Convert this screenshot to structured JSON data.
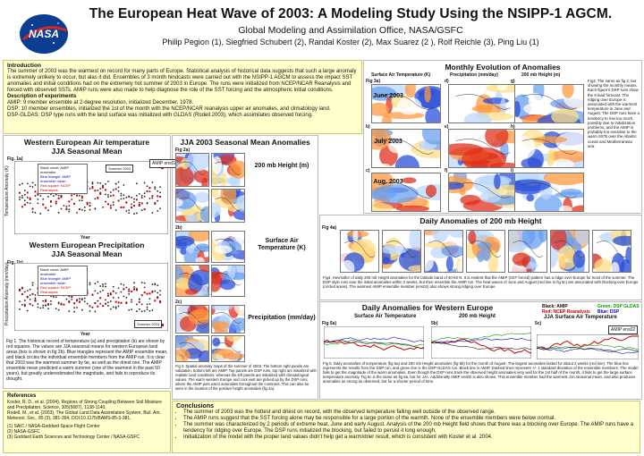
{
  "header": {
    "title": "The European Heat Wave of 2003: A Modeling Study Using the NSIPP-1 AGCM.",
    "subtitle": "Global Modeling and Assimilation Office, NASA/GSFC",
    "authors": "Philip Pegion (1), Siegfried Schubert (2), Randal Koster (2), Max Suarez (2 ), Rolf Reichle (3), Ping Liu (1)"
  },
  "intro": {
    "heading": "Introduction",
    "text": "The summer of 2003 was the warmest on record for many parts of Europe. Statistical analysis of historical data suggests that such a large anomaly is extremely unlikely to occur, but alas it did. Ensembles of 3 month hindcasts were carried out with the NSIPP-1 AGCM to assess the impact SST anomalies and initial conditions had on the extremely hot summer of 2003 in Europe. The runs were initialized from NCEP/NCAR Reanalysis and forced with observed SSTs. AMIP runs were also made to help diagnose the role of the SST forcing and the atmospheric initial conditions.",
    "exp_heading": "Description of experiments",
    "amip": "AMIP: 9 member ensemble at 2-degree resolution, initialized December, 1978.",
    "dsp": "DSP: 10 member ensembles, initialized the 1st of the month with the NCEP/NCAR reanalysis upper air anomalies, and climatology land.",
    "dspgldas": "DSP-GLDAS: DSP type runs with the land surface was initialized with GLDAS (Rodell 2003), which assimilates observed forcing."
  },
  "left": {
    "temp_title": "Western European Air temperature",
    "temp_sub": "JJA Seasonal Mean",
    "fig1a": "Fig. 1a)",
    "temp_ylabel": "Temperature Anomaly (K)",
    "legend1": "Black circle: AMIP ensemble",
    "legend2": "Blue triangle: AMIP ensemble mean",
    "legend3": "Red square: NCEP Reanalysis",
    "summer_tag": "Summer 2003",
    "year": "Year",
    "precip_title": "Western European Precipitation",
    "precip_sub": "JJA Seasonal Mean",
    "fig1b": "Fig. 1b)",
    "precip_ylabel": "Precipitation Anomaly (mm/day)",
    "summer_tag2": "Summer 2003",
    "year2": "Year",
    "caption": "Fig 1. The historical record of temperature (a) and precipitation (b) are shown by red squares. The values are JJA seasonal means for western European land areas (box is shown in fig 2b). Blue triangles represent the AMIP ensemble mean, and black circles the individual ensemble members from the AMIP run. It is clear that 2003 was the warmest summer by far, as well as the driest one. The AMIP ensemble mean predicted a warm summer (one of the warmest in the past 50 years), but greatly underestimated the magnitude, and fails to reproduce its drought."
  },
  "jja": {
    "title": "JJA 2003 Seasonal Mean Anomalies",
    "fig2a": "Fig 2a)",
    "amip_tag": "AMIP ens02",
    "row1": "200 mb Height (m)",
    "row2": "Surface Air Temperature (K)",
    "row3": "Precipitation (mm/day)",
    "map_a": "NCEP Reanalysis",
    "map_b": "AMIP",
    "map_c": "DSP June 1 init",
    "map_d": "DSP-GLDAS June 1 init",
    "fig2b": "2b)",
    "fig2c": "2c)",
    "caption": "Fig 2. Spatial anomaly maps of the summer of 2003. The bottom right panels are validation, bottom left are AMIP. Top panels are DSP runs, top right are initialized with realistic land conditions, whereas the left panels are initialized with climatological values. The warm western Europe and cool east are picked up by the DSP runs, where the AMIP puts warm anomalies throughout the continent. This can also be seen in the location of the positive height anomalies (fig 2a)."
  },
  "monthly": {
    "title": "Monthly Evolution of Anomalies",
    "col1": "Surface Air Temperature (K)",
    "col2": "Precipitation (mm/day)",
    "col3": "200 mb Height (m)",
    "fig3a": "Fig 3a)",
    "d": "d)",
    "g": "g)",
    "b": "b)",
    "e": "e)",
    "h": "h)",
    "c": "c)",
    "f": "f)",
    "i": "i)",
    "june": "June 2003",
    "july": "July 2003",
    "aug": "Aug. 2003",
    "caption": "Fig3. The same as fig 2, but showing the monthly means. Each figure's DSP runs show the 6 lead forecast. The ridging over Europe is associated with the warmest temperature in June and August. The DSP runs have a tendency to rise too much, possibly due to initialization problems, and the AMIP is probably too sensitive to the warm SSTs over the Atlantic ocean and Mediterranean sea."
  },
  "daily": {
    "title": "Daily Anomalies of 200 mb Height",
    "fig4a": "Fig 4a)",
    "b": "b)",
    "c": "c)",
    "d": "d)",
    "e": "e)",
    "f": "f)",
    "g": "g)",
    "caption": "Fig4. Hovmuller of daily 200 mb Height anomalies for the latitude band of 40-60 N. It is evident that the AMIP (SST forced) pattern has a ridge over Europe for most of the summer. The DSP style runs lose the initial anomalies within 2 weeks, but then resemble the AMIP run. The heat waves of June and August (red line in fig 5c) are associated with blocking over Europe (circled areas). The warmest AMIP ensemble member (ens02) also shows strong ridging over Europe."
  },
  "daily_eu": {
    "title": "Daily Anomalies for Western Europe",
    "col1": "Surface Air Temperature",
    "col2": "200 mb Height",
    "col3": "JJA Surface Air Temperature",
    "leg_black": "Black: AMIP",
    "leg_red": "Red: NCEP Reanalysis",
    "leg_green": "Green: DSP GLDAS",
    "leg_blue": "Blue: DSP",
    "fig5a": "Fig 5a)",
    "b": "5b)",
    "c": "5c)",
    "amip_tag": "AMIP ens02",
    "caption": "Fig 5. Daily anomalies of temperature (fig 5a) and 200 mb Height anomalies (fig 5b) for the month of August. The largest anomalies lasted for about 2 weeks (red line). The blue line represents the results from the DSP run, and green line is the DSP-GLDAS run. Black line is AMIP. Dashed lines represent +/- 1 standard deviation of the ensemble members. The model fails to get the magnitude of the warm anomalies. Even though the DSP runs track the observed height anomalies very well for the 1st half of the month, it fails to get the large surface temperature anomaly. Fig 5c is the same as fig 5a, but for JJA. Additionally AMIP ens02 is also shown. This ensemble member had the warmest JJA seasonal mean, and also produces anomalies as strong as observed, but for a shorter period of time."
  },
  "refs": {
    "heading": "References",
    "r1": "Koster, R. D., et al. (2004), Regions of Strong Coupling Between Soil Moisture and Precipitation, Science, 305(5687), 1138-1140.",
    "r2": "Rodell, M., et al. (2003), The Global Land Data Assimilation System, Bull. Am. Meteorol. Soc., 85 (3), 381-394, DOI:10.1175/BAMS-85-3-381.",
    "a1": "(1) SAIC / NASA-Goddard Space Flight Center",
    "a2": "(2) NASA-GSFC",
    "a3": "(3) Goddard Earth Sciences and Technology Center / NASA-GSFC"
  },
  "conclusions": {
    "heading": "Conclusions",
    "items": [
      "The summer of 2003 was the hottest and driest on record, with the observed temperature falling well outside of the observed range.",
      "The AMIP runs suggest that the SST forcing alone may be responsible for a large portion of the warmth. None of the ensemble members were below normal.",
      "The summer was characterized by 2 periods of extreme heat, June and early August. Analysis of the 200 mb Height field shows that there was a blocking over Europe. The AMIP runs have a tendency for ridging over Europe. The DSP runs initialized the blocking, but failed to persist it long enough.",
      "Initialization of the model with the proper land values didn't help get a warm/drier result, which is consistent with Koster et al. 2004."
    ]
  },
  "logo_text": "NASA",
  "colors": {
    "panel": "#ffffcc",
    "red": "#cc0000",
    "blue": "#0000cc",
    "green": "#00a000"
  }
}
